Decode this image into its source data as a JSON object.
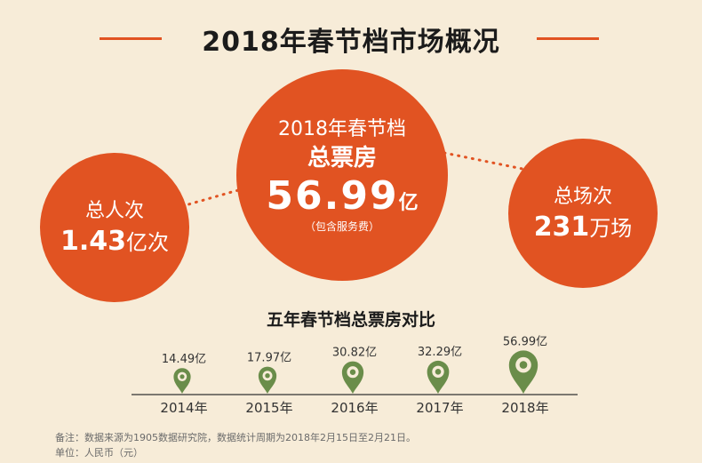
{
  "header": {
    "title": "2018年春节档市场概况"
  },
  "main_stat": {
    "line1": "2018年春节档",
    "line2": "总票房",
    "value": "56.99",
    "unit": "亿",
    "note": "（包含服务费）"
  },
  "left_stat": {
    "label": "总人次",
    "value": "1.43",
    "unit": "亿次"
  },
  "right_stat": {
    "label": "总场次",
    "value": "231",
    "unit": "万场"
  },
  "colors": {
    "accent": "#e15322",
    "marker": "#6a8d4a",
    "background": "#f7ecd8"
  },
  "chart_data": {
    "type": "scatter",
    "title": "五年春节档总票房对比",
    "categories": [
      "2014年",
      "2015年",
      "2016年",
      "2017年",
      "2018年"
    ],
    "values": [
      14.49,
      17.97,
      30.82,
      32.29,
      56.99
    ],
    "value_labels": [
      "14.49亿",
      "17.97亿",
      "30.82亿",
      "32.29亿",
      "56.99亿"
    ],
    "marker_icon": "location-pin-icon"
  },
  "footer": {
    "note": "备注：数据来源为1905数据研究院，数据统计周期为2018年2月15日至2月21日。",
    "unit": "单位：人民币（元）"
  }
}
